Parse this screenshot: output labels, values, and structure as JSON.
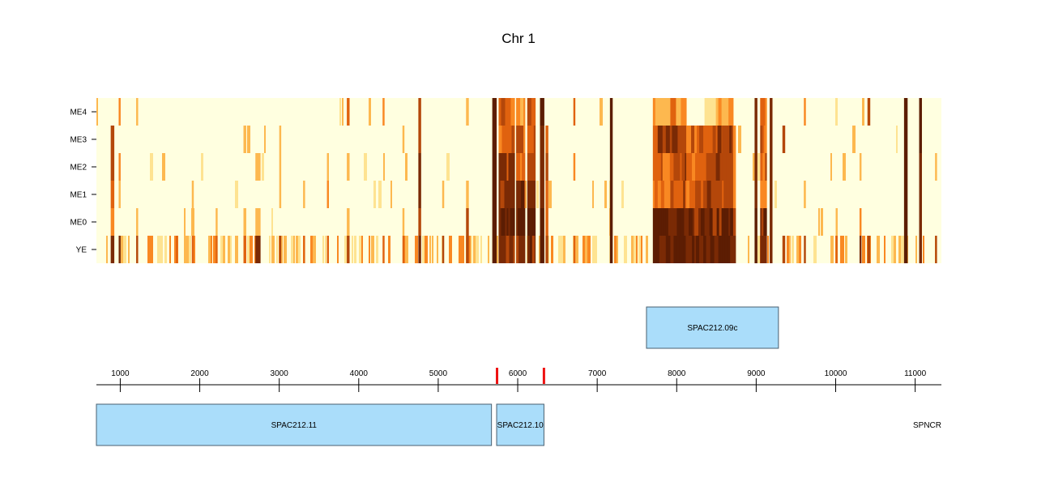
{
  "chart_data": {
    "type": "heatmap",
    "title": "Chr 1",
    "xlim": [
      700,
      11330
    ],
    "rows": [
      "ME4",
      "ME3",
      "ME2",
      "ME1",
      "ME0",
      "YE"
    ],
    "x_ticks": [
      1000,
      2000,
      3000,
      4000,
      5000,
      6000,
      7000,
      8000,
      9000,
      10000,
      11000
    ],
    "x_tick_labels": [
      "1000",
      "2000",
      "3000",
      "4000",
      "5000",
      "6000",
      "7000",
      "8000",
      "9000",
      "10000",
      "11000"
    ],
    "colors": {
      "scale": [
        "#ffffe0",
        "#fee391",
        "#fdb84f",
        "#f98822",
        "#e0620f",
        "#b4470a",
        "#7a2a05",
        "#5c1d03"
      ],
      "gene": "#aaddfa",
      "gene_border": "#4a6070",
      "boundary_marker": "#ee1111"
    },
    "genes": [
      {
        "name": "SPAC212.09c",
        "start": 7620,
        "end": 9280,
        "strand": "+"
      },
      {
        "name": "SPAC212.11",
        "start": 700,
        "end": 5670,
        "strand": "-"
      },
      {
        "name": "SPAC212.10",
        "start": 5735,
        "end": 6330,
        "strand": "-"
      },
      {
        "name": "SPNCR",
        "start": 11330,
        "end": 11330,
        "strand": "-"
      }
    ],
    "boundary_markers": [
      5740,
      6330
    ],
    "heat_features": [
      {
        "x": 880,
        "w": 40,
        "rows": [
          0,
          5,
          5,
          4,
          3,
          6
        ]
      },
      {
        "x": 980,
        "w": 20,
        "rows": [
          3,
          0,
          3,
          2,
          0,
          6
        ]
      },
      {
        "x": 1200,
        "w": 20,
        "rows": [
          2,
          0,
          0,
          0,
          2,
          5
        ]
      },
      {
        "x": 1700,
        "w": 20,
        "rows": [
          0,
          0,
          0,
          0,
          0,
          4
        ]
      },
      {
        "x": 1900,
        "w": 20,
        "rows": [
          0,
          0,
          0,
          2,
          0,
          4
        ]
      },
      {
        "x": 2200,
        "w": 20,
        "rows": [
          0,
          0,
          0,
          0,
          2,
          4
        ]
      },
      {
        "x": 2550,
        "w": 30,
        "rows": [
          0,
          2,
          0,
          0,
          2,
          4
        ]
      },
      {
        "x": 2700,
        "w": 60,
        "rows": [
          0,
          0,
          2,
          0,
          2,
          6
        ]
      },
      {
        "x": 3000,
        "w": 20,
        "rows": [
          0,
          2,
          2,
          2,
          0,
          5
        ]
      },
      {
        "x": 3300,
        "w": 20,
        "rows": [
          0,
          0,
          0,
          2,
          0,
          4
        ]
      },
      {
        "x": 3600,
        "w": 20,
        "rows": [
          0,
          0,
          2,
          3,
          0,
          4
        ]
      },
      {
        "x": 3850,
        "w": 30,
        "rows": [
          4,
          0,
          2,
          0,
          2,
          5
        ]
      },
      {
        "x": 4300,
        "w": 20,
        "rows": [
          3,
          0,
          0,
          0,
          0,
          4
        ]
      },
      {
        "x": 4550,
        "w": 20,
        "rows": [
          0,
          2,
          0,
          0,
          2,
          4
        ]
      },
      {
        "x": 4750,
        "w": 30,
        "rows": [
          5,
          5,
          6,
          6,
          5,
          6
        ]
      },
      {
        "x": 5050,
        "w": 20,
        "rows": [
          0,
          0,
          0,
          2,
          0,
          5
        ]
      },
      {
        "x": 5350,
        "w": 30,
        "rows": [
          2,
          0,
          0,
          2,
          5,
          5
        ]
      },
      {
        "x": 5680,
        "w": 50,
        "rows": [
          7,
          7,
          7,
          7,
          7,
          7
        ]
      },
      {
        "x": 5760,
        "w": 200,
        "rows": [
          4,
          4,
          5,
          6,
          7,
          6
        ]
      },
      {
        "x": 5980,
        "w": 110,
        "rows": [
          3,
          4,
          4,
          6,
          7,
          6
        ]
      },
      {
        "x": 6120,
        "w": 100,
        "rows": [
          5,
          5,
          5,
          6,
          7,
          6
        ]
      },
      {
        "x": 6280,
        "w": 50,
        "rows": [
          7,
          6,
          6,
          6,
          7,
          7
        ]
      },
      {
        "x": 6350,
        "w": 30,
        "rows": [
          0,
          4,
          5,
          4,
          4,
          5
        ]
      },
      {
        "x": 6700,
        "w": 20,
        "rows": [
          4,
          0,
          3,
          0,
          0,
          4
        ]
      },
      {
        "x": 7160,
        "w": 30,
        "rows": [
          7,
          7,
          7,
          7,
          7,
          7
        ]
      },
      {
        "x": 7700,
        "w": 220,
        "rows": [
          2,
          5,
          4,
          4,
          6,
          7
        ]
      },
      {
        "x": 7920,
        "w": 200,
        "rows": [
          3,
          5,
          5,
          5,
          6,
          7
        ]
      },
      {
        "x": 8120,
        "w": 230,
        "rows": [
          0,
          4,
          4,
          4,
          6,
          7
        ]
      },
      {
        "x": 8350,
        "w": 220,
        "rows": [
          2,
          5,
          5,
          5,
          6,
          7
        ]
      },
      {
        "x": 8570,
        "w": 140,
        "rows": [
          3,
          5,
          5,
          5,
          7,
          7
        ]
      },
      {
        "x": 8710,
        "w": 30,
        "rows": [
          0,
          3,
          3,
          3,
          5,
          6
        ]
      },
      {
        "x": 8980,
        "w": 30,
        "rows": [
          6,
          6,
          6,
          6,
          7,
          7
        ]
      },
      {
        "x": 9050,
        "w": 80,
        "rows": [
          4,
          4,
          4,
          4,
          6,
          6
        ]
      },
      {
        "x": 9170,
        "w": 30,
        "rows": [
          6,
          6,
          6,
          6,
          6,
          6
        ]
      },
      {
        "x": 9330,
        "w": 30,
        "rows": [
          0,
          5,
          0,
          0,
          0,
          5
        ]
      },
      {
        "x": 9600,
        "w": 20,
        "rows": [
          3,
          0,
          0,
          2,
          0,
          5
        ]
      },
      {
        "x": 10000,
        "w": 20,
        "rows": [
          0,
          0,
          0,
          0,
          2,
          4
        ]
      },
      {
        "x": 10300,
        "w": 20,
        "rows": [
          0,
          0,
          2,
          0,
          3,
          6
        ]
      },
      {
        "x": 10400,
        "w": 30,
        "rows": [
          5,
          0,
          0,
          0,
          0,
          5
        ]
      },
      {
        "x": 10860,
        "w": 40,
        "rows": [
          7,
          7,
          7,
          7,
          7,
          7
        ]
      },
      {
        "x": 11050,
        "w": 30,
        "rows": [
          7,
          7,
          6,
          6,
          6,
          6
        ]
      },
      {
        "x": 11250,
        "w": 20,
        "rows": [
          0,
          0,
          2,
          0,
          0,
          5
        ]
      }
    ]
  }
}
